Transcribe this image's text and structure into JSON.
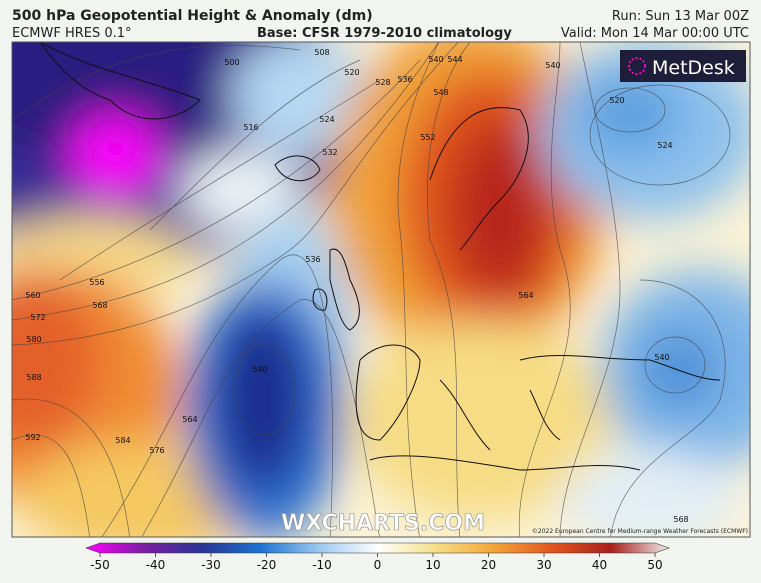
{
  "header": {
    "title": "500 hPa Geopotential Height & Anomaly (dm)",
    "model": "ECMWF HRES 0.1°",
    "base": "Base: CFSR 1979-2010 climatology",
    "run": "Run: Sun 13 Mar 00Z",
    "valid": "Valid: Mon 14 Mar 00:00 UTC"
  },
  "logo": "MetDesk",
  "watermark": "WXCHARTS.COM",
  "copyright": "©2022 European Centre for Medium-range Weather Forecasts (ECMWF)",
  "contour_labels": [
    500,
    508,
    516,
    520,
    524,
    528,
    532,
    536,
    540,
    544,
    548,
    552,
    536,
    540,
    556,
    560,
    568,
    572,
    580,
    588,
    592,
    584,
    576,
    564,
    564,
    520,
    524,
    540,
    540,
    568
  ],
  "colorbar": {
    "lim": [
      -50,
      50
    ],
    "ticks": [
      -50,
      -40,
      -30,
      -20,
      -10,
      0,
      10,
      20,
      30,
      40,
      50
    ]
  }
}
